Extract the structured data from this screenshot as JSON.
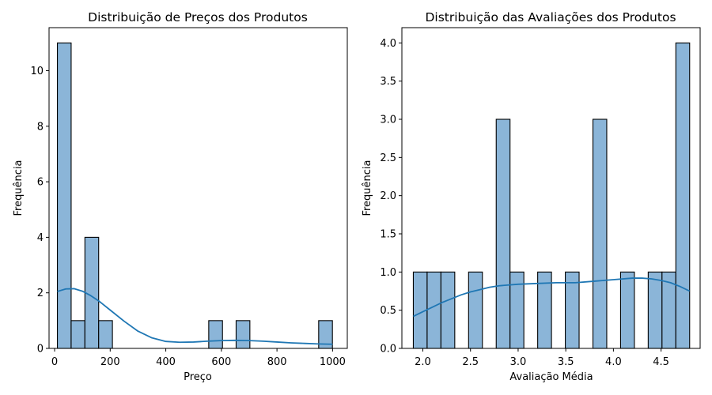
{
  "chart_data": [
    {
      "type": "bar",
      "subtype": "histogram-with-kde",
      "title": "Distribuição de Preços dos Produtos",
      "xlabel": "Preço",
      "ylabel": "Frequência",
      "xlim": [
        -20,
        1053
      ],
      "ylim": [
        0,
        11.55
      ],
      "xticks": [
        0,
        200,
        400,
        600,
        800,
        1000
      ],
      "yticks": [
        0,
        2,
        4,
        6,
        8,
        10
      ],
      "xtick_labels": [
        "0",
        "200",
        "400",
        "600",
        "800",
        "1000"
      ],
      "ytick_labels": [
        "0",
        "2",
        "4",
        "6",
        "8",
        "10"
      ],
      "bins": [
        {
          "x0": 10,
          "x1": 59.5,
          "count": 11
        },
        {
          "x0": 59.5,
          "x1": 109,
          "count": 1
        },
        {
          "x0": 109,
          "x1": 158.5,
          "count": 4
        },
        {
          "x0": 158.5,
          "x1": 208,
          "count": 1
        },
        {
          "x0": 554.5,
          "x1": 604,
          "count": 1
        },
        {
          "x0": 653,
          "x1": 702.5,
          "count": 1
        },
        {
          "x0": 950,
          "x1": 999.5,
          "count": 1
        }
      ],
      "kde": {
        "x": [
          10,
          40,
          70,
          100,
          130,
          160,
          200,
          250,
          300,
          350,
          400,
          450,
          500,
          550,
          600,
          650,
          700,
          750,
          800,
          850,
          900,
          950,
          1000
        ],
        "y": [
          2.05,
          2.14,
          2.15,
          2.06,
          1.9,
          1.7,
          1.38,
          0.98,
          0.62,
          0.38,
          0.25,
          0.22,
          0.23,
          0.26,
          0.28,
          0.29,
          0.28,
          0.26,
          0.23,
          0.2,
          0.18,
          0.16,
          0.15
        ]
      },
      "colors": {
        "bar": "#8bb5d8",
        "edge": "#000000",
        "kde": "#1f77b4"
      },
      "grid": false
    },
    {
      "type": "bar",
      "subtype": "histogram-with-kde",
      "title": "Distribuição das Avaliações dos Produtos",
      "xlabel": "Avaliação Média",
      "ylabel": "Frequência",
      "xlim": [
        1.78,
        4.91
      ],
      "ylim": [
        0,
        4.2
      ],
      "xticks": [
        2.0,
        2.5,
        3.0,
        3.5,
        4.0,
        4.5
      ],
      "yticks": [
        0.0,
        0.5,
        1.0,
        1.5,
        2.0,
        2.5,
        3.0,
        3.5,
        4.0
      ],
      "xtick_labels": [
        "2.0",
        "2.5",
        "3.0",
        "3.5",
        "4.0",
        "4.5"
      ],
      "ytick_labels": [
        "0.0",
        "0.5",
        "1.0",
        "1.5",
        "2.0",
        "2.5",
        "3.0",
        "3.5",
        "4.0"
      ],
      "bins": [
        {
          "x0": 1.9,
          "x1": 2.045,
          "count": 1
        },
        {
          "x0": 2.045,
          "x1": 2.19,
          "count": 1
        },
        {
          "x0": 2.19,
          "x1": 2.335,
          "count": 1
        },
        {
          "x0": 2.48,
          "x1": 2.625,
          "count": 1
        },
        {
          "x0": 2.77,
          "x1": 2.915,
          "count": 3
        },
        {
          "x0": 2.915,
          "x1": 3.06,
          "count": 1
        },
        {
          "x0": 3.205,
          "x1": 3.35,
          "count": 1
        },
        {
          "x0": 3.495,
          "x1": 3.64,
          "count": 1
        },
        {
          "x0": 3.785,
          "x1": 3.93,
          "count": 3
        },
        {
          "x0": 4.075,
          "x1": 4.22,
          "count": 1
        },
        {
          "x0": 4.365,
          "x1": 4.51,
          "count": 1
        },
        {
          "x0": 4.51,
          "x1": 4.655,
          "count": 1
        },
        {
          "x0": 4.655,
          "x1": 4.8,
          "count": 4
        }
      ],
      "kde": {
        "x": [
          1.9,
          2.0,
          2.1,
          2.2,
          2.3,
          2.4,
          2.5,
          2.6,
          2.7,
          2.8,
          2.9,
          3.0,
          3.2,
          3.4,
          3.6,
          3.8,
          4.0,
          4.2,
          4.3,
          4.4,
          4.5,
          4.6,
          4.7,
          4.8
        ],
        "y": [
          0.42,
          0.48,
          0.54,
          0.6,
          0.65,
          0.7,
          0.74,
          0.77,
          0.8,
          0.82,
          0.83,
          0.84,
          0.85,
          0.86,
          0.86,
          0.88,
          0.9,
          0.92,
          0.92,
          0.91,
          0.89,
          0.86,
          0.81,
          0.75
        ]
      },
      "colors": {
        "bar": "#8bb5d8",
        "edge": "#000000",
        "kde": "#1f77b4"
      },
      "grid": false
    }
  ]
}
